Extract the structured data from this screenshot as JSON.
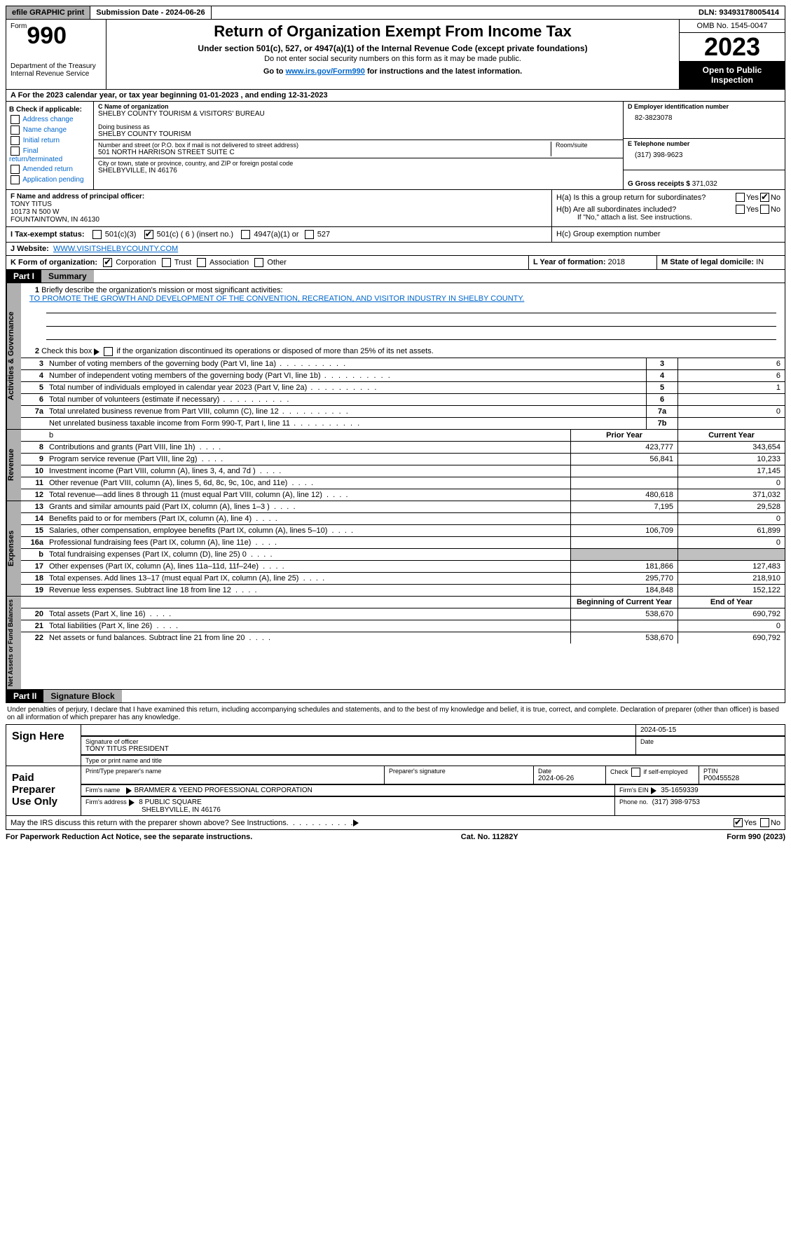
{
  "top": {
    "efile": "efile GRAPHIC print",
    "submission": "Submission Date - 2024-06-26",
    "dln": "DLN: 93493178005414"
  },
  "header": {
    "form_label": "Form",
    "form_number": "990",
    "dept": "Department of the Treasury\nInternal Revenue Service",
    "title": "Return of Organization Exempt From Income Tax",
    "sub1": "Under section 501(c), 527, or 4947(a)(1) of the Internal Revenue Code (except private foundations)",
    "sub2": "Do not enter social security numbers on this form as it may be made public.",
    "sub3_pre": "Go to ",
    "sub3_link": "www.irs.gov/Form990",
    "sub3_post": " for instructions and the latest information.",
    "omb": "OMB No. 1545-0047",
    "year": "2023",
    "open": "Open to Public Inspection"
  },
  "row_a": "A For the 2023 calendar year, or tax year beginning 01-01-2023    , and ending 12-31-2023",
  "col_b": {
    "label": "B Check if applicable:",
    "items": [
      "Address change",
      "Name change",
      "Initial return",
      "Final return/terminated",
      "Amended return",
      "Application pending"
    ]
  },
  "col_c": {
    "name_lbl": "C Name of organization",
    "name": "SHELBY COUNTY TOURISM & VISITORS' BUREAU",
    "dba_lbl": "Doing business as",
    "dba": "SHELBY COUNTY TOURISM",
    "addr_lbl": "Number and street (or P.O. box if mail is not delivered to street address)",
    "addr": "501 NORTH HARRISON STREET SUITE C",
    "room_lbl": "Room/suite",
    "city_lbl": "City or town, state or province, country, and ZIP or foreign postal code",
    "city": "SHELBYVILLE, IN  46176"
  },
  "col_d": {
    "ein_lbl": "D Employer identification number",
    "ein": "82-3823078",
    "tel_lbl": "E Telephone number",
    "tel": "(317) 398-9623",
    "gross_lbl": "G Gross receipts $",
    "gross": "371,032"
  },
  "section_f": {
    "lbl": "F  Name and address of principal officer:",
    "name": "TONY TITUS",
    "addr1": "10173 N 500 W",
    "addr2": "FOUNTAINTOWN, IN  46130"
  },
  "section_h": {
    "ha": "H(a)  Is this a group return for subordinates?",
    "hb": "H(b)  Are all subordinates included?",
    "hb_note": "If \"No,\" attach a list. See instructions.",
    "hc": "H(c)  Group exemption number",
    "yes": "Yes",
    "no": "No"
  },
  "tax_exempt": {
    "lbl": "I   Tax-exempt status:",
    "opts": [
      "501(c)(3)",
      "501(c) ( 6 ) (insert no.)",
      "4947(a)(1) or",
      "527"
    ]
  },
  "website": {
    "lbl": "J   Website:",
    "val": "WWW.VISITSHELBYCOUNTY.COM"
  },
  "form_org": {
    "lbl": "K Form of organization:",
    "opts": [
      "Corporation",
      "Trust",
      "Association",
      "Other"
    ]
  },
  "year_form": {
    "lbl": "L Year of formation:",
    "val": "2018"
  },
  "domicile": {
    "lbl": "M State of legal domicile:",
    "val": "IN"
  },
  "part1": {
    "hdr": "Part I",
    "title": "Summary"
  },
  "summary": {
    "s1_lbl": "Briefly describe the organization's mission or most significant activities:",
    "s1_val": "TO PROMOTE THE GROWTH AND DEVELOPMENT OF THE CONVENTION, RECREATION, AND VISITOR INDUSTRY IN SHELBY COUNTY.",
    "s2": "Check this box      if the organization discontinued its operations or disposed of more than 25% of its net assets.",
    "rows_gov": [
      {
        "n": "3",
        "d": "Number of voting members of the governing body (Part VI, line 1a)",
        "box": "3",
        "v": "6"
      },
      {
        "n": "4",
        "d": "Number of independent voting members of the governing body (Part VI, line 1b)",
        "box": "4",
        "v": "6"
      },
      {
        "n": "5",
        "d": "Total number of individuals employed in calendar year 2023 (Part V, line 2a)",
        "box": "5",
        "v": "1"
      },
      {
        "n": "6",
        "d": "Total number of volunteers (estimate if necessary)",
        "box": "6",
        "v": ""
      },
      {
        "n": "7a",
        "d": "Total unrelated business revenue from Part VIII, column (C), line 12",
        "box": "7a",
        "v": "0"
      },
      {
        "n": "",
        "d": "Net unrelated business taxable income from Form 990-T, Part I, line 11",
        "box": "7b",
        "v": ""
      }
    ],
    "col_prior": "Prior Year",
    "col_current": "Current Year",
    "rows_rev": [
      {
        "n": "8",
        "d": "Contributions and grants (Part VIII, line 1h)",
        "p": "423,777",
        "c": "343,654"
      },
      {
        "n": "9",
        "d": "Program service revenue (Part VIII, line 2g)",
        "p": "56,841",
        "c": "10,233"
      },
      {
        "n": "10",
        "d": "Investment income (Part VIII, column (A), lines 3, 4, and 7d )",
        "p": "",
        "c": "17,145"
      },
      {
        "n": "11",
        "d": "Other revenue (Part VIII, column (A), lines 5, 6d, 8c, 9c, 10c, and 11e)",
        "p": "",
        "c": "0"
      },
      {
        "n": "12",
        "d": "Total revenue—add lines 8 through 11 (must equal Part VIII, column (A), line 12)",
        "p": "480,618",
        "c": "371,032"
      }
    ],
    "rows_exp": [
      {
        "n": "13",
        "d": "Grants and similar amounts paid (Part IX, column (A), lines 1–3 )",
        "p": "7,195",
        "c": "29,528"
      },
      {
        "n": "14",
        "d": "Benefits paid to or for members (Part IX, column (A), line 4)",
        "p": "",
        "c": "0"
      },
      {
        "n": "15",
        "d": "Salaries, other compensation, employee benefits (Part IX, column (A), lines 5–10)",
        "p": "106,709",
        "c": "61,899"
      },
      {
        "n": "16a",
        "d": "Professional fundraising fees (Part IX, column (A), line 11e)",
        "p": "",
        "c": "0"
      },
      {
        "n": "b",
        "d": "Total fundraising expenses (Part IX, column (D), line 25) 0",
        "p": "GREY",
        "c": "GREY"
      },
      {
        "n": "17",
        "d": "Other expenses (Part IX, column (A), lines 11a–11d, 11f–24e)",
        "p": "181,866",
        "c": "127,483"
      },
      {
        "n": "18",
        "d": "Total expenses. Add lines 13–17 (must equal Part IX, column (A), line 25)",
        "p": "295,770",
        "c": "218,910"
      },
      {
        "n": "19",
        "d": "Revenue less expenses. Subtract line 18 from line 12",
        "p": "184,848",
        "c": "152,122"
      }
    ],
    "col_begin": "Beginning of Current Year",
    "col_end": "End of Year",
    "rows_net": [
      {
        "n": "20",
        "d": "Total assets (Part X, line 16)",
        "p": "538,670",
        "c": "690,792"
      },
      {
        "n": "21",
        "d": "Total liabilities (Part X, line 26)",
        "p": "",
        "c": "0"
      },
      {
        "n": "22",
        "d": "Net assets or fund balances. Subtract line 21 from line 20",
        "p": "538,670",
        "c": "690,792"
      }
    ],
    "side_gov": "Activities & Governance",
    "side_rev": "Revenue",
    "side_exp": "Expenses",
    "side_net": "Net Assets or Fund Balances"
  },
  "part2": {
    "hdr": "Part II",
    "title": "Signature Block"
  },
  "penalty": "Under penalties of perjury, I declare that I have examined this return, including accompanying schedules and statements, and to the best of my knowledge and belief, it is true, correct, and complete. Declaration of preparer (other than officer) is based on all information of which preparer has any knowledge.",
  "sign": {
    "here": "Sign Here",
    "officer_sig": "Signature of officer",
    "officer_name": "TONY TITUS PRESIDENT",
    "officer_type": "Type or print name and title",
    "date_lbl": "Date",
    "date": "2024-05-15"
  },
  "paid": {
    "lbl": "Paid Preparer Use Only",
    "print_name": "Print/Type preparer's name",
    "prep_sig": "Preparer's signature",
    "date_lbl": "Date",
    "date": "2024-06-26",
    "check_lbl": "Check        if self-employed",
    "ptin_lbl": "PTIN",
    "ptin": "P00455528",
    "firm_name_lbl": "Firm's name",
    "firm_name": "BRAMMER & YEEND PROFESSIONAL CORPORATION",
    "firm_ein_lbl": "Firm's EIN",
    "firm_ein": "35-1659339",
    "firm_addr_lbl": "Firm's address",
    "firm_addr1": "8 PUBLIC SQUARE",
    "firm_addr2": "SHELBYVILLE, IN  46176",
    "phone_lbl": "Phone no.",
    "phone": "(317) 398-9753"
  },
  "discuss": "May the IRS discuss this return with the preparer shown above? See Instructions.",
  "footer": {
    "left": "For Paperwork Reduction Act Notice, see the separate instructions.",
    "mid": "Cat. No. 11282Y",
    "right": "Form 990 (2023)"
  }
}
